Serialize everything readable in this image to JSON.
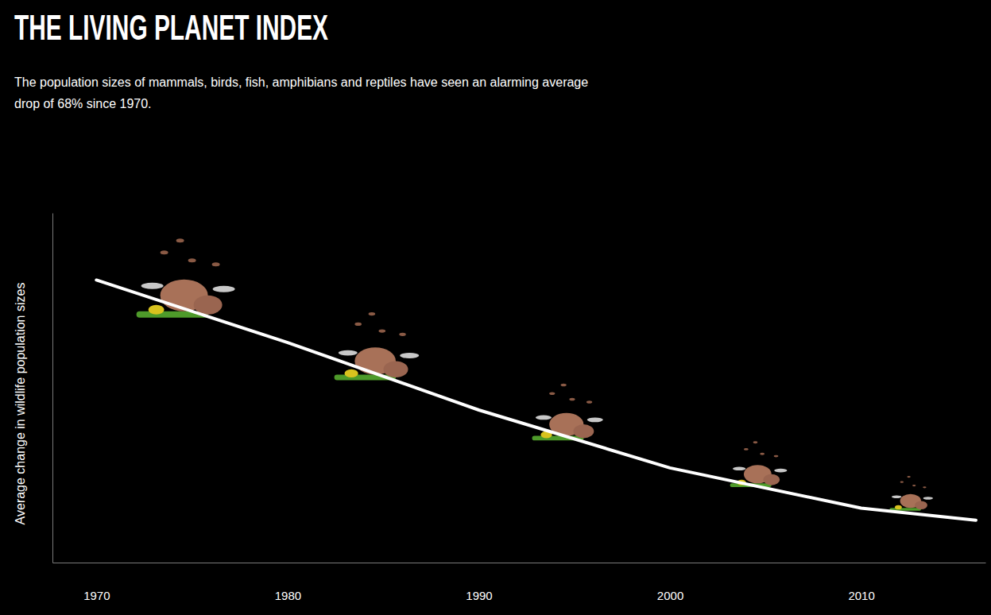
{
  "chart_data": {
    "type": "line",
    "title": "THE LIVING PLANET INDEX",
    "subtitle": "The population sizes of mammals, birds, fish, amphibians and reptiles have seen an alarming average drop of 68% since 1970.",
    "y_label": "Average change in wildlife population sizes",
    "x": [
      1970,
      1980,
      1990,
      2000,
      2010,
      2016
    ],
    "values": [
      1,
      0.823,
      0.632,
      0.468,
      0.354,
      0.32
    ],
    "color": "#ffffff",
    "xlim": [
      1967.7,
      2016.5
    ],
    "xticks": [
      1970,
      1980,
      1990,
      2000,
      2010
    ],
    "ylim": [
      0.2,
      1.19
    ],
    "yticks": [],
    "tick_labels": "x",
    "grid": false
  }
}
